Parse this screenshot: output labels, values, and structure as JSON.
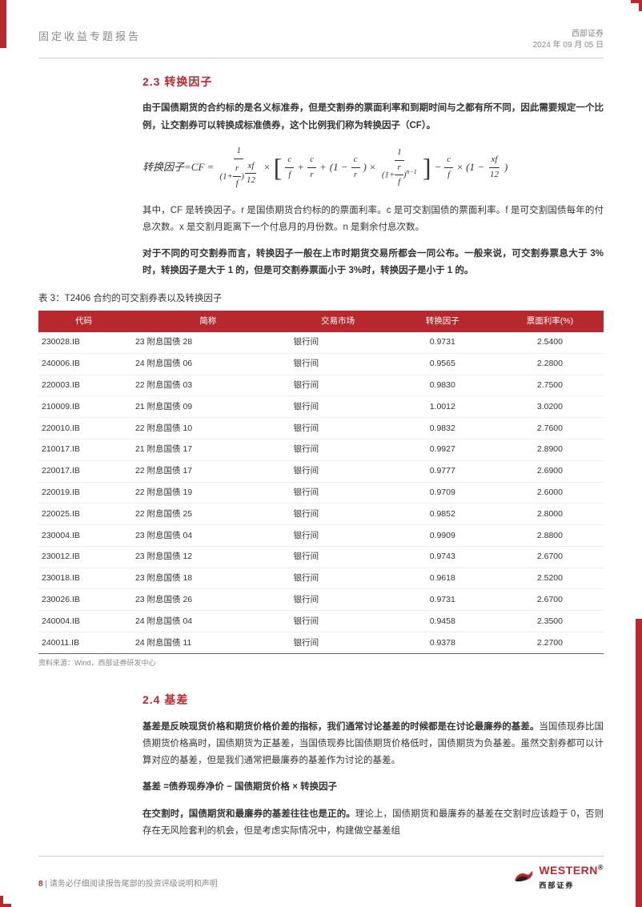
{
  "header": {
    "left": "固定收益专题报告",
    "company": "西部证券",
    "date": "2024 年 09 月 05 日"
  },
  "section23": {
    "title": "2.3 转换因子",
    "para1": "由于国债期货的合约标的是名义标准券，但是交割券的票面利率和到期时间与之都有所不同，因此需要规定一个比例，让交割券可以转换成标准债券，这个比例我们称为转换因子（CF）。",
    "formula_prefix": "转换因子=CF =",
    "para2": "其中，CF 是转换因子。r 是国债期货合约标的的票面利率。c 是可交割国债的票面利率。f 是可交割国债每年的付息次数。x 是交割月距离下一个付息月的月份数。n 是剩余付息次数。",
    "para3": "对于不同的可交割券而言，转换因子一般在上市时期货交易所都会一同公布。一般来说，可交割券票息大于 3%时，转换因子是大于 1 的，但是可交割券票面小于 3%时，转换因子是小于 1 的。"
  },
  "table3": {
    "title": "表 3：T2406 合约的可交割券表以及转换因子",
    "columns": [
      "代码",
      "简称",
      "交易市场",
      "转换因子",
      "票面利率(%)"
    ],
    "rows": [
      [
        "230028.IB",
        "23 附息国债 28",
        "银行间",
        "0.9731",
        "2.5400"
      ],
      [
        "240006.IB",
        "24 附息国债 06",
        "银行间",
        "0.9565",
        "2.2800"
      ],
      [
        "220003.IB",
        "22 附息国债 03",
        "银行间",
        "0.9830",
        "2.7500"
      ],
      [
        "210009.IB",
        "21 附息国债 09",
        "银行间",
        "1.0012",
        "3.0200"
      ],
      [
        "220010.IB",
        "22 附息国债 10",
        "银行间",
        "0.9832",
        "2.7600"
      ],
      [
        "210017.IB",
        "21 附息国债 17",
        "银行间",
        "0.9927",
        "2.8900"
      ],
      [
        "220017.IB",
        "22 附息国债 17",
        "银行间",
        "0.9777",
        "2.6900"
      ],
      [
        "220019.IB",
        "22 附息国债 19",
        "银行间",
        "0.9709",
        "2.6000"
      ],
      [
        "220025.IB",
        "22 附息国债 25",
        "银行间",
        "0.9852",
        "2.8000"
      ],
      [
        "230004.IB",
        "23 附息国债 04",
        "银行间",
        "0.9909",
        "2.8800"
      ],
      [
        "230012.IB",
        "23 附息国债 12",
        "银行间",
        "0.9743",
        "2.6700"
      ],
      [
        "230018.IB",
        "23 附息国债 18",
        "银行间",
        "0.9618",
        "2.5200"
      ],
      [
        "230026.IB",
        "23 附息国债 26",
        "银行间",
        "0.9731",
        "2.6700"
      ],
      [
        "240004.IB",
        "24 附息国债 04",
        "银行间",
        "0.9458",
        "2.3500"
      ],
      [
        "240011.IB",
        "24 附息国债 11",
        "银行间",
        "0.9378",
        "2.2700"
      ]
    ],
    "source": "资料来源：Wind，西部证券研发中心"
  },
  "section24": {
    "title": "2.4 基差",
    "para1_bold": "基差是反映现货价格和期货价格价差的指标，我们通常讨论基差的时候都是在讨论最廉券的基差。",
    "para1_rest": "当国债现券比国债期货价格高时，国债期货为正基差，当国债现券比国债期货价格低时，国债期货为负基差。虽然交割券都可以计算对应的基差，但是我们通常把最廉券的基差作为讨论的基差。",
    "formula": "基差 =债券现券净价 − 国债期货价格 × 转换因子",
    "para2_bold": "在交割时，国债期货和最廉券的基差往往也是正的。",
    "para2_rest": "理论上，国债期货和最廉券的基差在交割时应该趋于 0，否则存在无风险套利的机会，但是考虑实际情况中，构建做空基差组"
  },
  "footer": {
    "page": "8",
    "disclaimer": "请务必仔细阅读报告尾部的投资评级说明和声明",
    "logo_text": "WESTERN",
    "logo_cn": "西部证券"
  },
  "colors": {
    "brand_red": "#b8292f",
    "text_gray": "#888888",
    "text_body": "#333333"
  }
}
